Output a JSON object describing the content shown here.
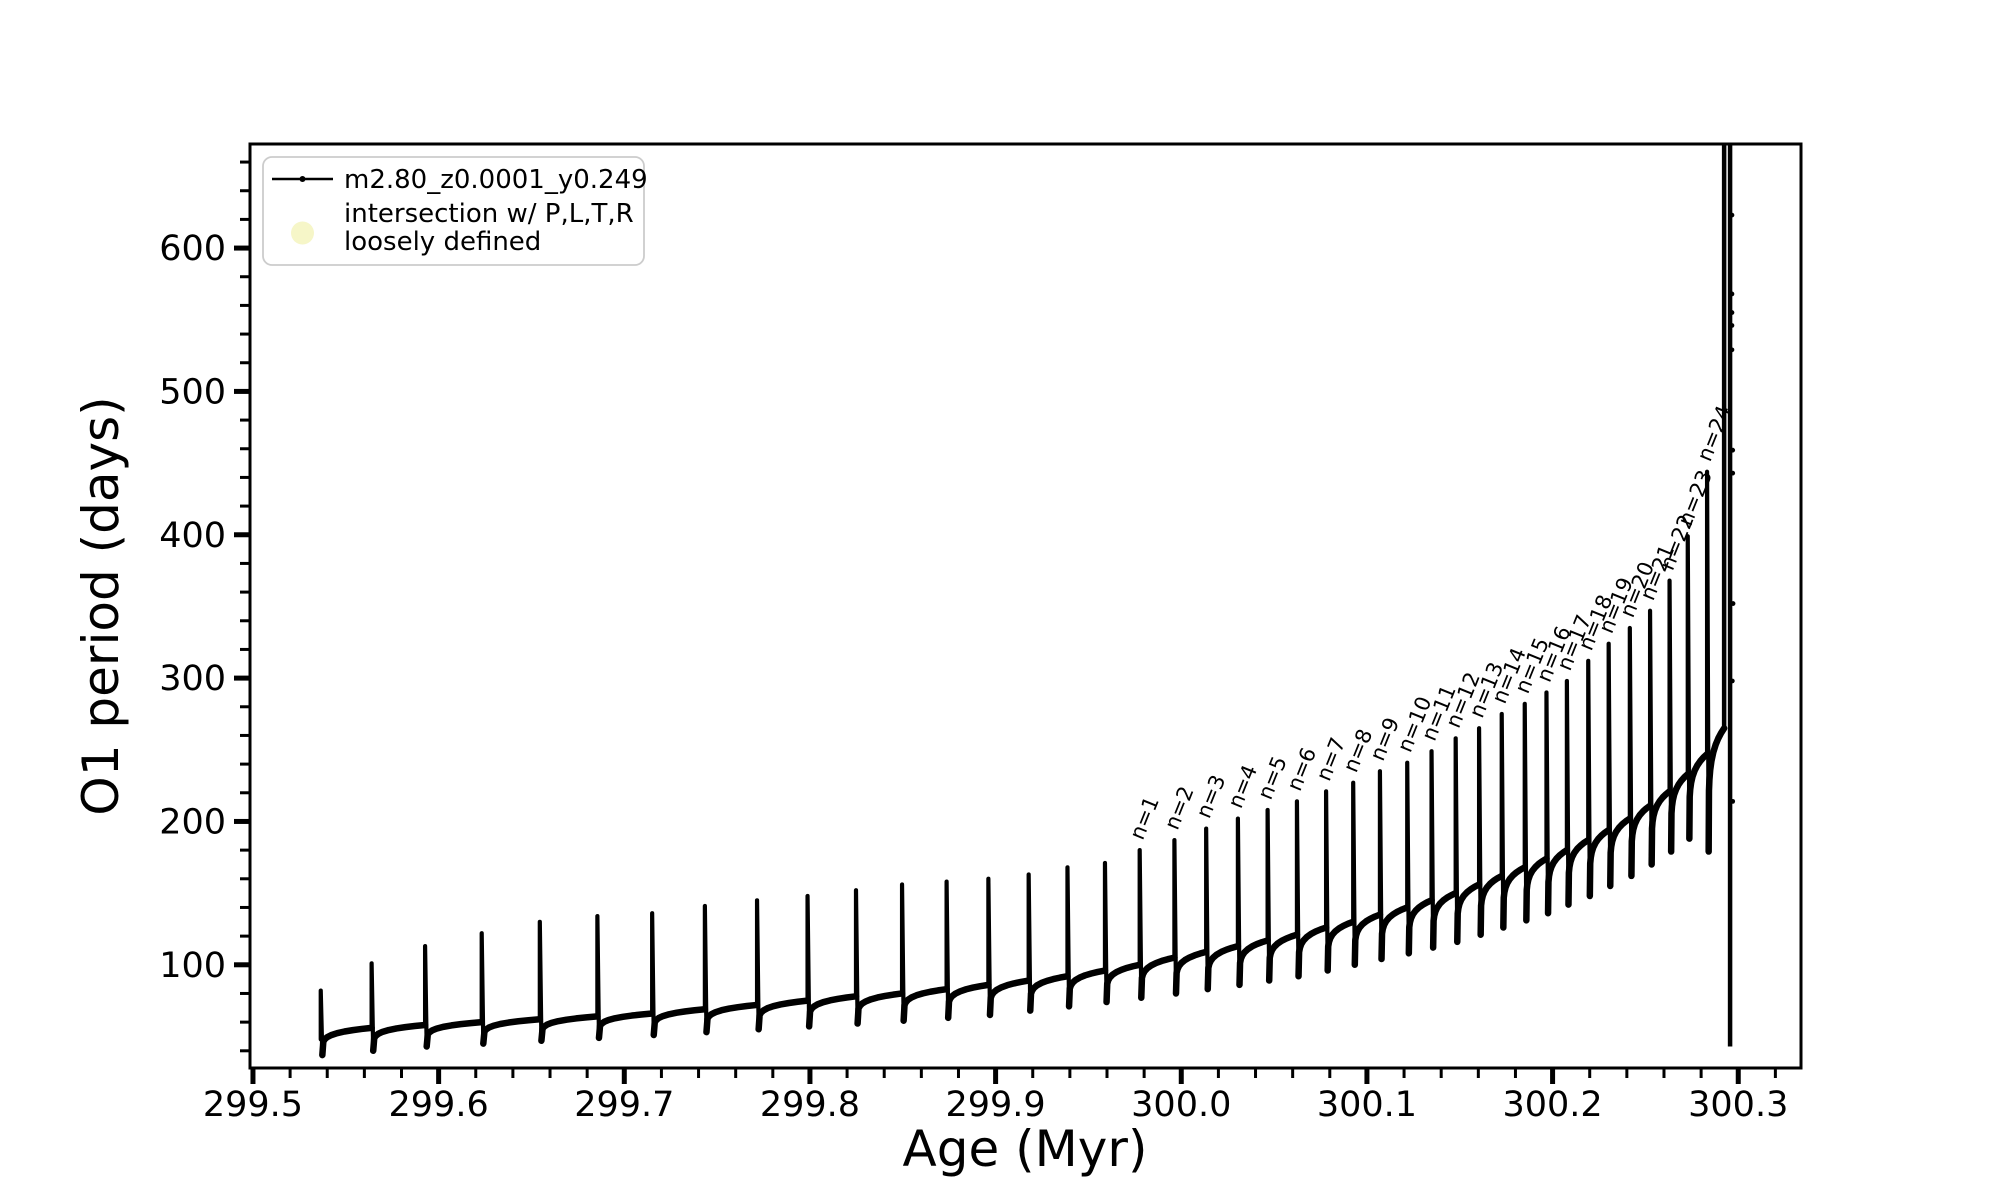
{
  "chart_data": {
    "type": "line",
    "title": "",
    "xlabel": "Age (Myr)",
    "ylabel": "O1 period (days)",
    "xlim": [
      299.4984,
      300.3338
    ],
    "ylim": [
      28,
      672.6
    ],
    "grid": false,
    "line_color": "#000000",
    "x_major_ticks": [
      299.5,
      299.6,
      299.7,
      299.8,
      299.9,
      300.0,
      300.1,
      300.2,
      300.3
    ],
    "x_tick_labels": [
      "299.5",
      "299.6",
      "299.7",
      "299.8",
      "299.9",
      "300.0",
      "300.1",
      "300.2",
      "300.3"
    ],
    "x_minor_step": 0.02,
    "y_major_ticks": [
      100,
      200,
      300,
      400,
      500,
      600
    ],
    "y_tick_labels": [
      "100",
      "200",
      "300",
      "400",
      "500",
      "600"
    ],
    "y_minor_step": 20,
    "legend": {
      "position": "upper left",
      "entries": [
        {
          "label": "m2.80_z0.0001_y0.249",
          "marker": "line-with-dot",
          "color": "#000000"
        },
        {
          "label_line1": "intersection w/ P,L,T,R",
          "label_line2": "loosely defined",
          "marker": "circle",
          "color": "#f6f6c8"
        }
      ]
    },
    "series_name": "m2.80_z0.0001_y0.249",
    "pulses": [
      {
        "n": null,
        "age": 299.5365,
        "base": 48,
        "peak": 82,
        "dip": 37
      },
      {
        "n": null,
        "age": 299.5639,
        "base": 56,
        "peak": 101,
        "dip": 40
      },
      {
        "n": null,
        "age": 299.5927,
        "base": 58,
        "peak": 113,
        "dip": 43
      },
      {
        "n": null,
        "age": 299.6232,
        "base": 60,
        "peak": 122,
        "dip": 45
      },
      {
        "n": null,
        "age": 299.6545,
        "base": 62,
        "peak": 130,
        "dip": 47
      },
      {
        "n": null,
        "age": 299.6855,
        "base": 64,
        "peak": 134,
        "dip": 49
      },
      {
        "n": null,
        "age": 299.715,
        "base": 66,
        "peak": 136,
        "dip": 51
      },
      {
        "n": null,
        "age": 299.7434,
        "base": 69,
        "peak": 141,
        "dip": 53
      },
      {
        "n": null,
        "age": 299.7715,
        "base": 72,
        "peak": 145,
        "dip": 55
      },
      {
        "n": null,
        "age": 299.7987,
        "base": 75,
        "peak": 148,
        "dip": 57
      },
      {
        "n": null,
        "age": 299.8248,
        "base": 78,
        "peak": 152,
        "dip": 59
      },
      {
        "n": null,
        "age": 299.8496,
        "base": 80,
        "peak": 156,
        "dip": 61
      },
      {
        "n": null,
        "age": 299.8736,
        "base": 83,
        "peak": 158,
        "dip": 63
      },
      {
        "n": null,
        "age": 299.8961,
        "base": 86,
        "peak": 160,
        "dip": 65
      },
      {
        "n": null,
        "age": 299.9178,
        "base": 89,
        "peak": 163,
        "dip": 68
      },
      {
        "n": null,
        "age": 299.9387,
        "base": 92,
        "peak": 168,
        "dip": 71
      },
      {
        "n": null,
        "age": 299.9589,
        "base": 96,
        "peak": 171,
        "dip": 74
      },
      {
        "n": 1,
        "age": 299.9776,
        "base": 100,
        "peak": 180,
        "dip": 77
      },
      {
        "n": 2,
        "age": 299.9963,
        "base": 105,
        "peak": 187,
        "dip": 80
      },
      {
        "n": 3,
        "age": 300.0134,
        "base": 109,
        "peak": 195,
        "dip": 83
      },
      {
        "n": 4,
        "age": 300.0305,
        "base": 113,
        "peak": 202,
        "dip": 86
      },
      {
        "n": 5,
        "age": 300.0465,
        "base": 117,
        "peak": 208,
        "dip": 89
      },
      {
        "n": 6,
        "age": 300.0623,
        "base": 121,
        "peak": 214,
        "dip": 92
      },
      {
        "n": 7,
        "age": 300.078,
        "base": 126,
        "peak": 221,
        "dip": 96
      },
      {
        "n": 8,
        "age": 300.0926,
        "base": 130,
        "peak": 227,
        "dip": 100
      },
      {
        "n": 9,
        "age": 300.107,
        "base": 135,
        "peak": 235,
        "dip": 104
      },
      {
        "n": 10,
        "age": 300.1217,
        "base": 140,
        "peak": 241,
        "dip": 108
      },
      {
        "n": 11,
        "age": 300.1348,
        "base": 145,
        "peak": 249,
        "dip": 112
      },
      {
        "n": 12,
        "age": 300.1478,
        "base": 150,
        "peak": 258,
        "dip": 116
      },
      {
        "n": 13,
        "age": 300.1604,
        "base": 156,
        "peak": 265,
        "dip": 121
      },
      {
        "n": 14,
        "age": 300.1726,
        "base": 162,
        "peak": 275,
        "dip": 126
      },
      {
        "n": 15,
        "age": 300.185,
        "base": 168,
        "peak": 282,
        "dip": 131
      },
      {
        "n": 16,
        "age": 300.1967,
        "base": 174,
        "peak": 290,
        "dip": 136
      },
      {
        "n": 17,
        "age": 300.2077,
        "base": 180,
        "peak": 298,
        "dip": 142
      },
      {
        "n": 18,
        "age": 300.2192,
        "base": 187,
        "peak": 312,
        "dip": 148
      },
      {
        "n": 19,
        "age": 300.2302,
        "base": 194,
        "peak": 324,
        "dip": 155
      },
      {
        "n": 20,
        "age": 300.2416,
        "base": 202,
        "peak": 335,
        "dip": 162
      },
      {
        "n": 21,
        "age": 300.2525,
        "base": 211,
        "peak": 347,
        "dip": 170
      },
      {
        "n": 22,
        "age": 300.263,
        "base": 221,
        "peak": 368,
        "dip": 179
      },
      {
        "n": 23,
        "age": 300.2728,
        "base": 233,
        "peak": 399,
        "dip": 188
      },
      {
        "n": 24,
        "age": 300.2832,
        "base": 247,
        "peak": 444,
        "dip": 179
      }
    ],
    "pulse_label_prefix": "n=",
    "final_event": {
      "age_rise": 300.2924,
      "age_fall": 300.2956,
      "base": 265,
      "bottom": 43,
      "top_clipped": true
    },
    "stray_points": [
      {
        "age": 300.2966,
        "value": 623
      },
      {
        "age": 300.2966,
        "value": 568
      },
      {
        "age": 300.2966,
        "value": 555
      },
      {
        "age": 300.2966,
        "value": 546
      },
      {
        "age": 300.2966,
        "value": 529
      },
      {
        "age": 300.297,
        "value": 459
      },
      {
        "age": 300.297,
        "value": 443
      },
      {
        "age": 300.2972,
        "value": 352
      },
      {
        "age": 300.2968,
        "value": 298
      },
      {
        "age": 300.297,
        "value": 214
      }
    ]
  }
}
